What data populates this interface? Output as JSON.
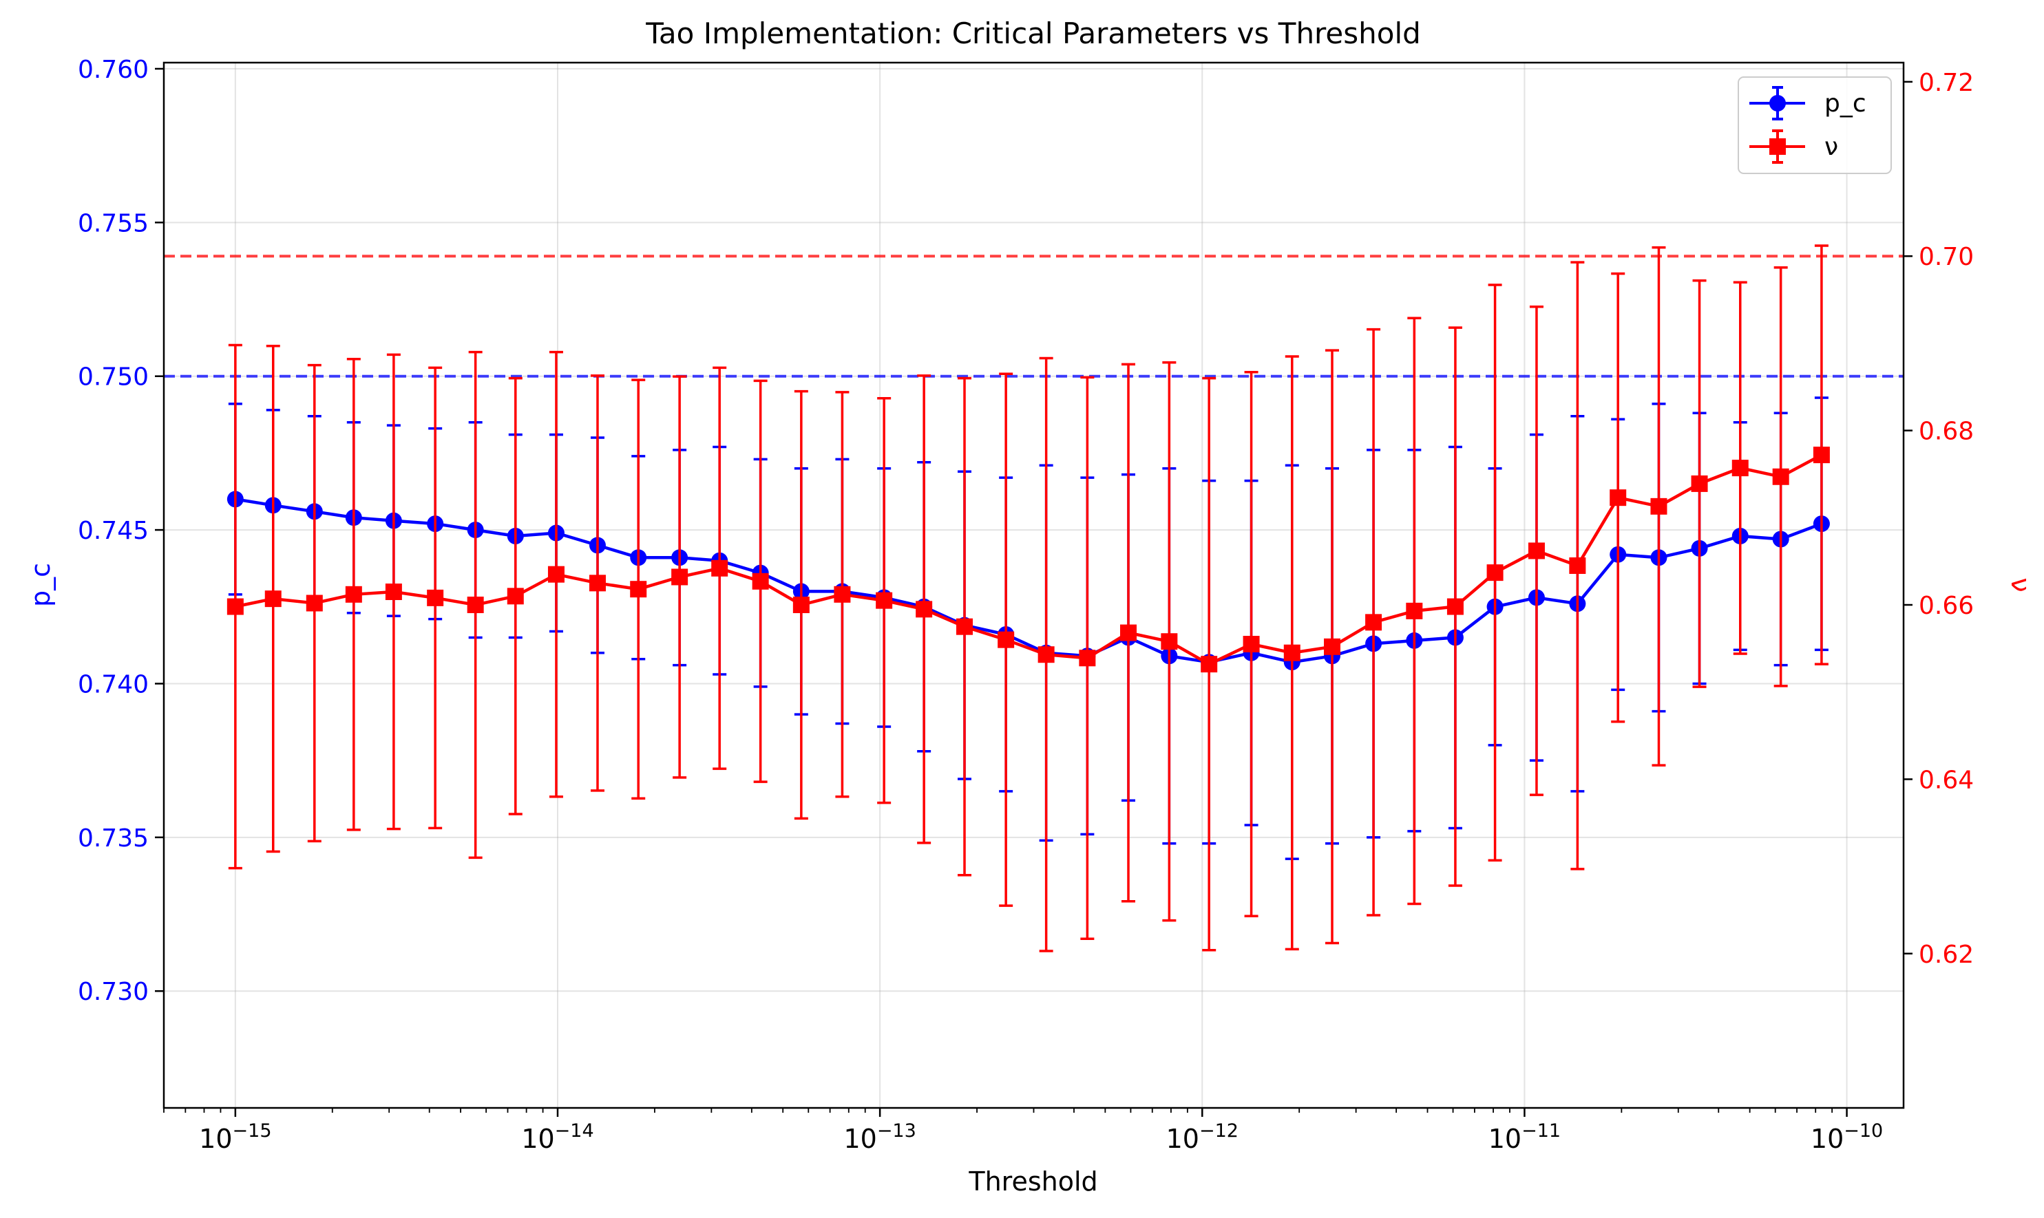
{
  "chart_data": {
    "type": "line",
    "title": "Tao Implementation: Critical Parameters vs Threshold",
    "xlabel": "Threshold",
    "ylabel_left": "p_c",
    "ylabel_right": "ν",
    "xscale": "log",
    "xlim": [
      6e-16,
      1.5e-10
    ],
    "ylim_left": [
      0.7262,
      0.7602
    ],
    "ylim_right": [
      0.6023,
      0.7222
    ],
    "x_ticks": [
      {
        "value": 1e-15,
        "base": "10",
        "exp": "−15"
      },
      {
        "value": 1e-14,
        "base": "10",
        "exp": "−14"
      },
      {
        "value": 1e-13,
        "base": "10",
        "exp": "−13"
      },
      {
        "value": 1e-12,
        "base": "10",
        "exp": "−12"
      },
      {
        "value": 1e-11,
        "base": "10",
        "exp": "−11"
      },
      {
        "value": 1e-10,
        "base": "10",
        "exp": "−10"
      }
    ],
    "yticks_left": [
      {
        "value": 0.73,
        "label": "0.730"
      },
      {
        "value": 0.735,
        "label": "0.735"
      },
      {
        "value": 0.74,
        "label": "0.740"
      },
      {
        "value": 0.745,
        "label": "0.745"
      },
      {
        "value": 0.75,
        "label": "0.750"
      },
      {
        "value": 0.755,
        "label": "0.755"
      },
      {
        "value": 0.76,
        "label": "0.760"
      }
    ],
    "yticks_right": [
      {
        "value": 0.62,
        "label": "0.62"
      },
      {
        "value": 0.64,
        "label": "0.64"
      },
      {
        "value": 0.66,
        "label": "0.66"
      },
      {
        "value": 0.68,
        "label": "0.68"
      },
      {
        "value": 0.7,
        "label": "0.70"
      },
      {
        "value": 0.72,
        "label": "0.72"
      }
    ],
    "grid": true,
    "legend_position": "top-right",
    "x": [
      1e-15,
      1.31e-15,
      1.76e-15,
      2.33e-15,
      3.1e-15,
      4.17e-15,
      5.56e-15,
      7.4e-15,
      9.9e-15,
      1.33e-14,
      1.78e-14,
      2.39e-14,
      3.18e-14,
      4.26e-14,
      5.7e-14,
      7.64e-14,
      1.03e-13,
      1.37e-13,
      1.83e-13,
      2.46e-13,
      3.28e-13,
      4.4e-13,
      5.9e-13,
      7.9e-13,
      1.05e-12,
      1.42e-12,
      1.9e-12,
      2.53e-12,
      3.4e-12,
      4.55e-12,
      6.1e-12,
      8.1e-12,
      1.09e-11,
      1.46e-11,
      1.95e-11,
      2.61e-11,
      3.49e-11,
      4.67e-11,
      6.24e-11,
      8.35e-11
    ],
    "series": [
      {
        "name": "p_c",
        "axis": "left",
        "color": "#0000ff",
        "marker": "circle",
        "values": [
          0.746,
          0.7458,
          0.7456,
          0.7454,
          0.7453,
          0.7452,
          0.745,
          0.7448,
          0.7449,
          0.7445,
          0.7441,
          0.7441,
          0.744,
          0.7436,
          0.743,
          0.743,
          0.7428,
          0.7425,
          0.7419,
          0.7416,
          0.741,
          0.7409,
          0.7415,
          0.7409,
          0.7407,
          0.741,
          0.7407,
          0.7409,
          0.7413,
          0.7414,
          0.7415,
          0.7425,
          0.7428,
          0.7426,
          0.7442,
          0.7441,
          0.7444,
          0.7448,
          0.7447,
          0.7452
        ],
        "errors": [
          0.0031,
          0.0031,
          0.0031,
          0.0031,
          0.0031,
          0.0031,
          0.0035,
          0.0033,
          0.0032,
          0.0035,
          0.0033,
          0.0035,
          0.0037,
          0.0037,
          0.004,
          0.0043,
          0.0042,
          0.0047,
          0.005,
          0.0051,
          0.0061,
          0.0058,
          0.0053,
          0.0061,
          0.0059,
          0.0056,
          0.0064,
          0.0061,
          0.0063,
          0.0062,
          0.0062,
          0.0045,
          0.0053,
          0.0061,
          0.0044,
          0.005,
          0.0044,
          0.0037,
          0.0041,
          0.0041
        ]
      },
      {
        "name": "ν",
        "axis": "right",
        "color": "#ff0000",
        "marker": "square",
        "values": [
          0.6598,
          0.6607,
          0.6602,
          0.6612,
          0.6615,
          0.6608,
          0.66,
          0.661,
          0.6635,
          0.6625,
          0.6618,
          0.6632,
          0.6642,
          0.6627,
          0.66,
          0.6612,
          0.6605,
          0.6595,
          0.6575,
          0.656,
          0.6543,
          0.6539,
          0.6568,
          0.6558,
          0.6532,
          0.6555,
          0.6545,
          0.6552,
          0.658,
          0.6593,
          0.6598,
          0.6637,
          0.6662,
          0.6645,
          0.6723,
          0.6713,
          0.6739,
          0.6757,
          0.6747,
          0.6772
        ],
        "errors": [
          0.03,
          0.029,
          0.0273,
          0.027,
          0.0272,
          0.0264,
          0.029,
          0.025,
          0.0255,
          0.0238,
          0.024,
          0.023,
          0.023,
          0.023,
          0.0245,
          0.0232,
          0.0232,
          0.0268,
          0.0285,
          0.0305,
          0.034,
          0.0322,
          0.0308,
          0.032,
          0.0328,
          0.0312,
          0.034,
          0.034,
          0.0336,
          0.0336,
          0.032,
          0.033,
          0.028,
          0.0348,
          0.0257,
          0.0297,
          0.0233,
          0.0213,
          0.024,
          0.024
        ]
      }
    ],
    "reference_lines": [
      {
        "axis": "left",
        "value": 0.75,
        "color": "#0000ff",
        "style": "dashed"
      },
      {
        "axis": "right",
        "value": 0.7,
        "color": "#ff0000",
        "style": "dashed"
      }
    ]
  }
}
